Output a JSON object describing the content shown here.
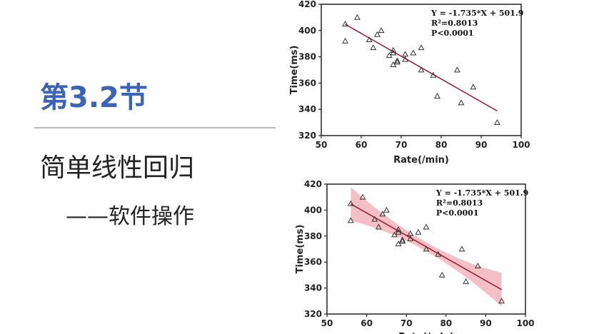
{
  "slide": {
    "section": "第3.2节",
    "title": "简单线性回归",
    "subtitle": "——软件操作"
  },
  "colors": {
    "section": "#3c63b6",
    "fit_line": "#a2203f",
    "ci_band": "#f2a9b5",
    "points": "#333333"
  },
  "chart_data": [
    {
      "type": "scatter",
      "xlabel": "Rate(/min)",
      "ylabel": "Time(ms)",
      "xlim": [
        50,
        100
      ],
      "ylim": [
        320,
        420
      ],
      "xticks": [
        "50",
        "60",
        "70",
        "80",
        "90",
        "100"
      ],
      "yticks": [
        "320",
        "340",
        "360",
        "380",
        "400",
        "420"
      ],
      "x": [
        56,
        56,
        59,
        62,
        63,
        64,
        65,
        67,
        68,
        68,
        68,
        69,
        69,
        71,
        71,
        73,
        75,
        75,
        78,
        79,
        84,
        85,
        88,
        94
      ],
      "y": [
        405,
        392,
        410,
        393,
        387,
        397,
        400,
        381,
        385,
        383,
        374,
        377,
        376,
        382,
        378,
        383,
        387,
        370,
        366,
        350,
        370,
        345,
        357,
        330
      ],
      "regression": {
        "slope": -1.735,
        "intercept": 501.9,
        "x_range": [
          56,
          94
        ]
      },
      "show_ci_band": false,
      "annotations": [
        "Y = -1.735*X + 501.9",
        "R²=0.8013",
        "P<0.0001"
      ],
      "grid": false
    },
    {
      "type": "scatter",
      "xlabel": "Rate(/min)",
      "ylabel": "Time(ms)",
      "xlim": [
        50,
        100
      ],
      "ylim": [
        320,
        420
      ],
      "xticks": [
        "50",
        "60",
        "70",
        "80",
        "90",
        "100"
      ],
      "yticks": [
        "320",
        "340",
        "360",
        "380",
        "400",
        "420"
      ],
      "x": [
        56,
        56,
        59,
        62,
        63,
        64,
        65,
        67,
        68,
        68,
        68,
        69,
        69,
        71,
        71,
        73,
        75,
        75,
        78,
        79,
        84,
        85,
        88,
        94
      ],
      "y": [
        405,
        392,
        410,
        393,
        387,
        397,
        400,
        381,
        385,
        383,
        374,
        377,
        376,
        382,
        378,
        383,
        387,
        370,
        366,
        350,
        370,
        345,
        357,
        330
      ],
      "regression": {
        "slope": -1.735,
        "intercept": 501.9,
        "x_range": [
          56,
          94
        ]
      },
      "show_ci_band": true,
      "ci_halfwidth": {
        "at_ends": 13,
        "at_center": 3.5
      },
      "annotations": [
        "Y = -1.735*X + 501.9",
        "R²=0.8013",
        "P<0.0001"
      ],
      "grid": false
    }
  ]
}
